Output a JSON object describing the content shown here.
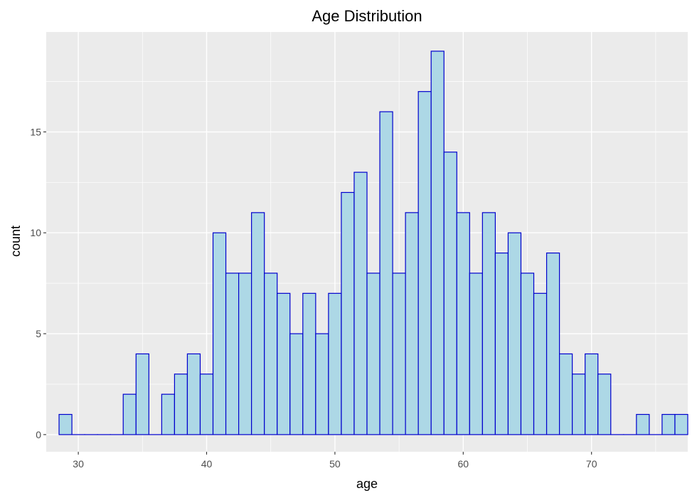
{
  "chart_data": {
    "type": "bar",
    "title": "Age Distribution",
    "xlabel": "age",
    "ylabel": "count",
    "bin_width": 1,
    "x_bins": [
      29,
      30,
      31,
      32,
      33,
      34,
      35,
      36,
      37,
      38,
      39,
      40,
      41,
      42,
      43,
      44,
      45,
      46,
      47,
      48,
      49,
      50,
      51,
      52,
      53,
      54,
      55,
      56,
      57,
      58,
      59,
      60,
      61,
      62,
      63,
      64,
      65,
      66,
      67,
      68,
      69,
      70,
      71,
      72,
      73,
      74,
      75,
      76,
      77
    ],
    "values": [
      1,
      0,
      0,
      0,
      0,
      2,
      4,
      0,
      2,
      3,
      4,
      3,
      10,
      8,
      8,
      11,
      8,
      7,
      5,
      7,
      5,
      7,
      12,
      13,
      8,
      16,
      8,
      11,
      17,
      19,
      14,
      11,
      8,
      11,
      9,
      10,
      8,
      7,
      9,
      4,
      3,
      4,
      3,
      0,
      0,
      1,
      0,
      1,
      1
    ],
    "xlim": [
      27.5,
      77.5
    ],
    "ylim": [
      -0.85,
      19.95
    ],
    "x_ticks": [
      30,
      40,
      50,
      60,
      70
    ],
    "x_tick_labels": [
      "30",
      "40",
      "50",
      "60",
      "70"
    ],
    "y_ticks": [
      0,
      5,
      10,
      15
    ],
    "y_tick_labels": [
      "0",
      "5",
      "10",
      "15"
    ],
    "grid": true,
    "legend": "none",
    "colors": {
      "bar_fill": "#ADD8E6",
      "bar_outline": "#0000CD",
      "panel_background": "#EBEBEB",
      "grid": "#FFFFFF"
    }
  }
}
